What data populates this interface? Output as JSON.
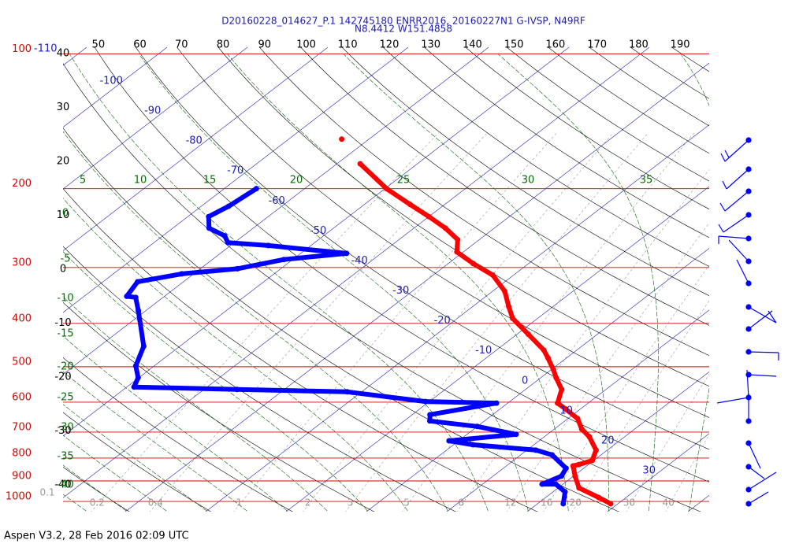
{
  "chart_data": {
    "type": "skew-t",
    "title": "D20160228_014627_P.1 142745180 ENRR2016, 20160227N1 G-IVSP, N49RF",
    "subtitle": "N8.4412 W151.4858",
    "caption": "Aspen V3.2, 28 Feb 2016  02:09 UTC",
    "yscale": "log",
    "ylim": [
      1054,
      96.6
    ],
    "yticks": [
      100,
      200,
      300,
      400,
      500,
      600,
      700,
      800,
      900,
      1000
    ],
    "xlim": [
      41.5,
      197
    ],
    "xticks": [
      50,
      60,
      70,
      80,
      90,
      100,
      110,
      120,
      130,
      140,
      150,
      160,
      170,
      180,
      190
    ],
    "isotherm_labels": [
      -100,
      -90,
      -80,
      -70,
      -60,
      -50,
      -40,
      -30,
      -20,
      -10,
      0,
      10,
      20,
      30
    ],
    "isotherm_top_label": -110,
    "dry_adiabat_labels": [
      40,
      30,
      20,
      10,
      0,
      -10,
      -20,
      -30,
      -40
    ],
    "moist_adiabat_labels": [
      5,
      10,
      15,
      20,
      25,
      30,
      35
    ],
    "moist_adiabat_left_labels": [
      0,
      -5,
      -10,
      -15,
      -20,
      -25,
      -30,
      -35,
      -40
    ],
    "mixing_ratio_labels": [
      0.2,
      0.4,
      1,
      2,
      3,
      5,
      8,
      12,
      16,
      20,
      30,
      40
    ],
    "mixing_ratio_left_label": 0.1,
    "series": [
      {
        "color": "#ff0000",
        "pressure": [
          1012,
          980,
          933,
          878,
          833,
          827,
          810,
          768,
          717,
          689,
          653,
          622,
          603,
          562,
          529,
          508,
          478,
          459,
          423,
          390,
          367,
          339,
          312,
          294,
          277,
          260,
          245,
          231,
          217,
          200,
          176
        ],
        "values": [
          29.1,
          26.6,
          22.6,
          20.2,
          18.3,
          18.8,
          19.8,
          18.6,
          15.6,
          13.4,
          11.2,
          8.2,
          6.2,
          4.5,
          1.9,
          0.3,
          -2.3,
          -4.1,
          -8.6,
          -13.1,
          -15.5,
          -18.5,
          -22.6,
          -26.9,
          -30.8,
          -32.7,
          -36.1,
          -40.0,
          -44.3,
          -49.8,
          -57.1
        ]
      },
      {
        "color": "#0000ff",
        "pressure": [
          1012,
          952,
          915,
          915,
          878,
          843,
          787,
          768,
          747,
          732,
          708,
          680,
          661,
          640,
          603,
          598,
          569,
          562,
          555,
          529,
          498,
          450,
          375,
          350,
          348,
          323,
          310,
          302,
          288,
          279,
          268,
          264,
          255,
          245,
          231,
          219,
          200
        ],
        "values": [
          23.2,
          21.5,
          19.1,
          17.4,
          18.5,
          17.8,
          13.9,
          11.1,
          2.4,
          -1.2,
          6.1,
          0.0,
          -6.8,
          -7.8,
          -1.4,
          -10.5,
          -21.8,
          -35.9,
          -49.1,
          -50.1,
          -52.3,
          -54.5,
          -60.9,
          -63.4,
          -64.7,
          -65.7,
          -61.5,
          -55.4,
          -51.1,
          -44.3,
          -55.3,
          -60.8,
          -62.3,
          -65.5,
          -67.4,
          -66.6,
          -66.0
        ]
      },
      {
        "color": "#ff0000",
        "pressure": [
          155
        ],
        "values": [
          -63.4
        ]
      }
    ]
  }
}
